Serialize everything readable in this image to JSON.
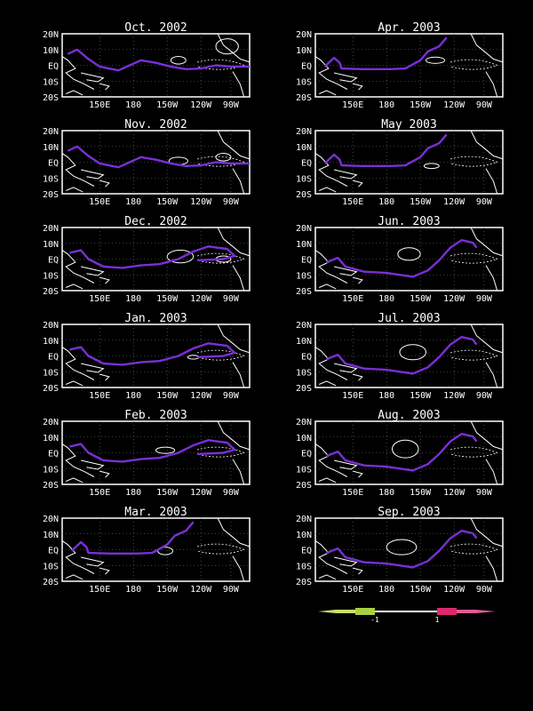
{
  "colors": {
    "background": "#000000",
    "frame": "#ffffff",
    "coast": "#ffffff",
    "contour_positive": "#ffffff",
    "contour_negative": "#ffffff",
    "highlight_contour": "#7a2fd6",
    "colorbar_negative": "#c8e06a",
    "colorbar_positive": "#e0286e"
  },
  "axes": {
    "y_ticks": [
      "20N",
      "10N",
      "EQ",
      "10S",
      "20S"
    ],
    "x_ticks": [
      "150E",
      "180",
      "150W",
      "120W",
      "90W"
    ]
  },
  "panels": [
    {
      "title": "Oct. 2002",
      "id": "oct-2002"
    },
    {
      "title": "Apr. 2003",
      "id": "apr-2003"
    },
    {
      "title": "Nov. 2002",
      "id": "nov-2002"
    },
    {
      "title": "May 2003",
      "id": "may-2003"
    },
    {
      "title": "Dec. 2002",
      "id": "dec-2002"
    },
    {
      "title": "Jun. 2003",
      "id": "jun-2003"
    },
    {
      "title": "Jan. 2003",
      "id": "jan-2003"
    },
    {
      "title": "Jul. 2003",
      "id": "jul-2003"
    },
    {
      "title": "Feb. 2003",
      "id": "feb-2003"
    },
    {
      "title": "Aug. 2003",
      "id": "aug-2003"
    },
    {
      "title": "Mar. 2003",
      "id": "mar-2003"
    },
    {
      "title": "Sep. 2003",
      "id": "sep-2003"
    }
  ],
  "colorbar": {
    "labels": [
      "-1",
      "1"
    ]
  }
}
